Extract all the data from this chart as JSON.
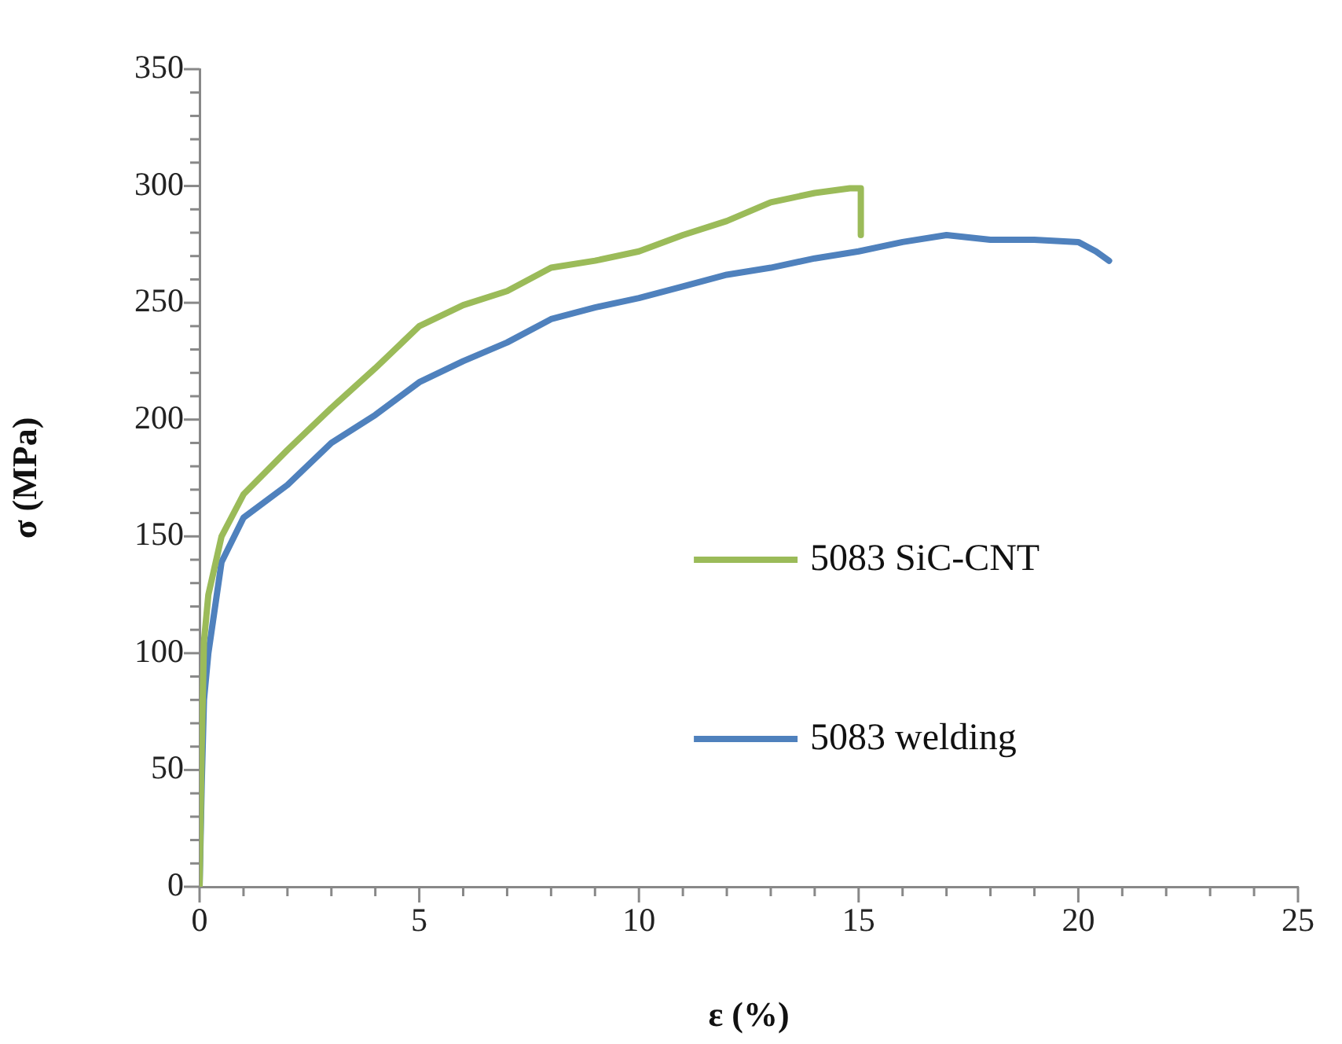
{
  "chart_data": {
    "type": "line",
    "xlabel": "ε (%)",
    "ylabel": "σ (MPa)",
    "xlim": [
      0,
      25
    ],
    "ylim": [
      0,
      350
    ],
    "xticks": [
      0,
      {
        "value": 1,
        "label": null
      },
      {
        "value": 2,
        "label": null
      },
      {
        "value": 3,
        "label": null
      },
      {
        "value": 4,
        "label": null
      },
      5,
      {
        "value": 6,
        "label": null
      },
      {
        "value": 7,
        "label": null
      },
      {
        "value": 8,
        "label": null
      },
      {
        "value": 9,
        "label": null
      },
      10,
      {
        "value": 11,
        "label": null
      },
      {
        "value": 12,
        "label": null
      },
      {
        "value": 13,
        "label": null
      },
      {
        "value": 14,
        "label": null
      },
      15,
      {
        "value": 16,
        "label": null
      },
      {
        "value": 17,
        "label": null
      },
      {
        "value": 18,
        "label": null
      },
      {
        "value": 19,
        "label": null
      },
      20,
      {
        "value": 21,
        "label": null
      },
      {
        "value": 22,
        "label": null
      },
      {
        "value": 23,
        "label": null
      },
      {
        "value": 24,
        "label": null
      },
      25
    ],
    "yticks": [
      0,
      {
        "value": 10,
        "label": null
      },
      {
        "value": 20,
        "label": null
      },
      {
        "value": 30,
        "label": null
      },
      {
        "value": 40,
        "label": null
      },
      50,
      {
        "value": 60,
        "label": null
      },
      {
        "value": 70,
        "label": null
      },
      {
        "value": 80,
        "label": null
      },
      {
        "value": 90,
        "label": null
      },
      100,
      {
        "value": 110,
        "label": null
      },
      {
        "value": 120,
        "label": null
      },
      {
        "value": 130,
        "label": null
      },
      {
        "value": 140,
        "label": null
      },
      150,
      {
        "value": 160,
        "label": null
      },
      {
        "value": 170,
        "label": null
      },
      {
        "value": 180,
        "label": null
      },
      {
        "value": 190,
        "label": null
      },
      200,
      {
        "value": 210,
        "label": null
      },
      {
        "value": 220,
        "label": null
      },
      {
        "value": 230,
        "label": null
      },
      {
        "value": 240,
        "label": null
      },
      250,
      {
        "value": 260,
        "label": null
      },
      {
        "value": 270,
        "label": null
      },
      {
        "value": 280,
        "label": null
      },
      {
        "value": 290,
        "label": null
      },
      300,
      {
        "value": 310,
        "label": null
      },
      {
        "value": 320,
        "label": null
      },
      {
        "value": 330,
        "label": null
      },
      {
        "value": 340,
        "label": null
      },
      350
    ],
    "grid": false,
    "legend": "right",
    "marker": "none",
    "line_style": "solid",
    "series": [
      {
        "name": "5083 SiC-CNT",
        "color": "#9bbb59",
        "x": [
          0,
          0.05,
          0.1,
          0.2,
          0.5,
          1,
          2,
          3,
          4,
          5,
          6,
          7,
          8,
          9,
          10,
          11,
          12,
          13,
          14,
          14.8,
          15.05,
          15.05
        ],
        "values": [
          0,
          60,
          105,
          125,
          150,
          168,
          187,
          205,
          222,
          240,
          249,
          255,
          265,
          268,
          272,
          279,
          285,
          293,
          297,
          299,
          299,
          279
        ]
      },
      {
        "name": "5083 welding",
        "color": "#4f81bd",
        "x": [
          0,
          0.05,
          0.1,
          0.2,
          0.5,
          1,
          2,
          3,
          4,
          5,
          6,
          7,
          8,
          9,
          10,
          11,
          12,
          13,
          14,
          15,
          16,
          17,
          18,
          19,
          20,
          20.4,
          20.7
        ],
        "values": [
          0,
          45,
          80,
          100,
          139,
          158,
          172,
          190,
          202,
          216,
          225,
          233,
          243,
          248,
          252,
          257,
          262,
          265,
          269,
          272,
          276,
          279,
          277,
          277,
          276,
          272,
          268
        ]
      }
    ]
  }
}
